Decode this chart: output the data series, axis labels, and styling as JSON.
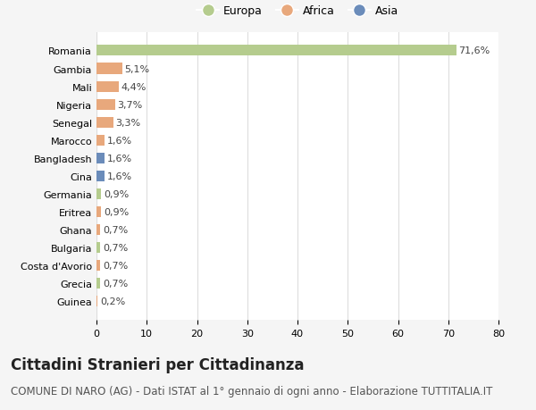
{
  "countries": [
    "Romania",
    "Gambia",
    "Mali",
    "Nigeria",
    "Senegal",
    "Marocco",
    "Bangladesh",
    "Cina",
    "Germania",
    "Eritrea",
    "Ghana",
    "Bulgaria",
    "Costa d'Avorio",
    "Grecia",
    "Guinea"
  ],
  "values": [
    71.6,
    5.1,
    4.4,
    3.7,
    3.3,
    1.6,
    1.6,
    1.6,
    0.9,
    0.9,
    0.7,
    0.7,
    0.7,
    0.7,
    0.2
  ],
  "labels": [
    "71,6%",
    "5,1%",
    "4,4%",
    "3,7%",
    "3,3%",
    "1,6%",
    "1,6%",
    "1,6%",
    "0,9%",
    "0,9%",
    "0,7%",
    "0,7%",
    "0,7%",
    "0,7%",
    "0,2%"
  ],
  "continents": [
    "Europa",
    "Africa",
    "Africa",
    "Africa",
    "Africa",
    "Africa",
    "Asia",
    "Asia",
    "Europa",
    "Africa",
    "Africa",
    "Europa",
    "Africa",
    "Europa",
    "Africa"
  ],
  "colors": {
    "Europa": "#b5cc8e",
    "Africa": "#e8a87c",
    "Asia": "#6b8cba"
  },
  "legend_order": [
    "Europa",
    "Africa",
    "Asia"
  ],
  "title": "Cittadini Stranieri per Cittadinanza",
  "subtitle": "COMUNE DI NARO (AG) - Dati ISTAT al 1° gennaio di ogni anno - Elaborazione TUTTITALIA.IT",
  "xlabel_ticks": [
    0,
    10,
    20,
    30,
    40,
    50,
    60,
    70,
    80
  ],
  "xlim": [
    0,
    80
  ],
  "background_color": "#f5f5f5",
  "plot_background": "#ffffff",
  "grid_color": "#dddddd",
  "bar_height": 0.6,
  "title_fontsize": 12,
  "subtitle_fontsize": 8.5,
  "label_fontsize": 8,
  "tick_fontsize": 8,
  "legend_fontsize": 9
}
